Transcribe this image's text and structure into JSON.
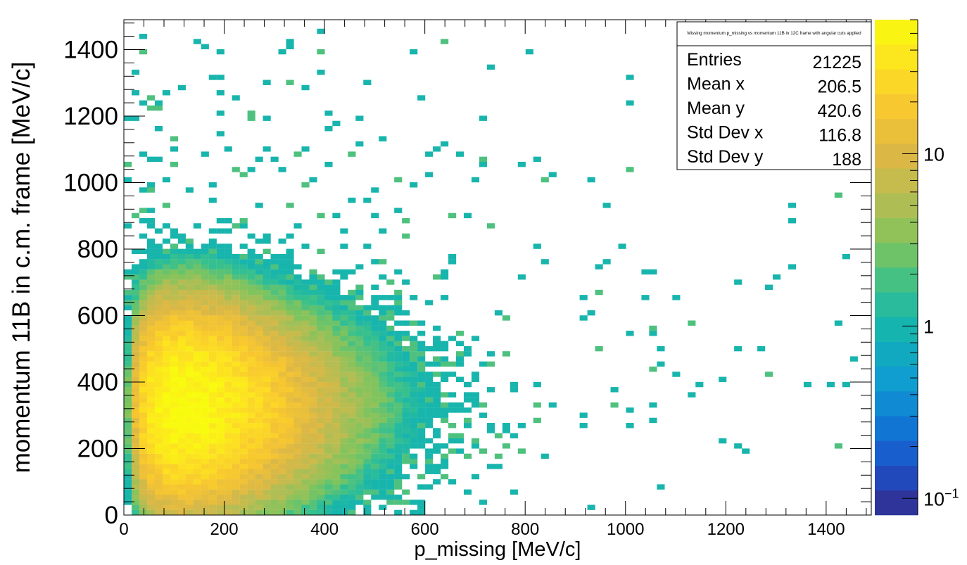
{
  "chart_data": {
    "type": "heatmap",
    "xlabel": "p_missing [MeV/c]",
    "ylabel": "momentum 11B in c.m. frame [MeV/c]",
    "xlim": [
      0,
      1490
    ],
    "ylim": [
      0,
      1490
    ],
    "x_ticks": [
      "0",
      "200",
      "400",
      "600",
      "800",
      "1000",
      "1200",
      "1400"
    ],
    "y_ticks": [
      "0",
      "200",
      "400",
      "600",
      "800",
      "1000",
      "1200",
      "1400"
    ],
    "x_tick_values": [
      0,
      200,
      400,
      600,
      800,
      1000,
      1200,
      1400
    ],
    "y_tick_values": [
      0,
      200,
      400,
      600,
      800,
      1000,
      1200,
      1400
    ],
    "bin_width": 15.4,
    "color_scale": "log",
    "z_range": [
      0.08,
      60
    ],
    "z_ticks": [
      {
        "label": "10",
        "value": 10
      },
      {
        "label": "1",
        "value": 1
      },
      {
        "label": "10",
        "sup": "−1",
        "value": 0.1
      }
    ],
    "palette": [
      "#352a87",
      "#1d4fc7",
      "#1078d4",
      "#0f9dd0",
      "#11b2b4",
      "#35c08f",
      "#7fc45e",
      "#b5bd53",
      "#dcb846",
      "#f7c630",
      "#fde121",
      "#f9fb0e"
    ],
    "stats": {
      "title": "Missing momentum p_missing vs momentum 11B in 12C frame with angular cuts applied",
      "rows": [
        {
          "label": "Entries",
          "value": "21225"
        },
        {
          "label": "Mean x",
          "value": "206.5"
        },
        {
          "label": "Mean y",
          "value": "420.6"
        },
        {
          "label": "Std Dev x",
          "value": "116.8"
        },
        {
          "label": "Std Dev y",
          "value": "188"
        }
      ]
    },
    "distribution": {
      "entries": 21225,
      "mean_x": 206.5,
      "mean_y": 420.6,
      "std_x": 116.8,
      "std_y": 188
    }
  }
}
